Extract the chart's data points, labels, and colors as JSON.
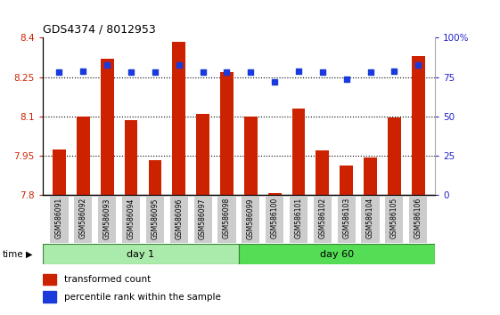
{
  "title": "GDS4374 / 8012953",
  "samples": [
    "GSM586091",
    "GSM586092",
    "GSM586093",
    "GSM586094",
    "GSM586095",
    "GSM586096",
    "GSM586097",
    "GSM586098",
    "GSM586099",
    "GSM586100",
    "GSM586101",
    "GSM586102",
    "GSM586103",
    "GSM586104",
    "GSM586105",
    "GSM586106"
  ],
  "bar_values": [
    7.975,
    8.1,
    8.32,
    8.085,
    7.935,
    8.385,
    8.11,
    8.27,
    8.1,
    7.81,
    8.13,
    7.97,
    7.915,
    7.945,
    8.095,
    8.33
  ],
  "dot_values": [
    78,
    79,
    83,
    78,
    78,
    83,
    78,
    78,
    78,
    72,
    79,
    78,
    74,
    78,
    79,
    83
  ],
  "bar_color": "#cc2200",
  "dot_color": "#1a3adb",
  "ymin": 7.8,
  "ymax": 8.4,
  "ytick_vals": [
    7.8,
    7.95,
    8.1,
    8.25,
    8.4
  ],
  "ytick_labels": [
    "7.8",
    "7.95",
    "8.1",
    "8.25",
    "8.4"
  ],
  "grid_lines": [
    7.95,
    8.1,
    8.25
  ],
  "y2min": 0,
  "y2max": 100,
  "y2tick_vals": [
    0,
    25,
    50,
    75,
    100
  ],
  "y2tick_labels": [
    "0",
    "25",
    "50",
    "75",
    "100%"
  ],
  "day1_count": 8,
  "day1_label": "day 1",
  "day60_label": "day 60",
  "legend1": "transformed count",
  "legend2": "percentile rank within the sample",
  "time_label": "time",
  "bg_day1": "#aaeaaa",
  "bg_day60": "#55dd55",
  "strip_edge": "#338833",
  "xlabel_color": "#cc2200",
  "ylabel_right_color": "#2222cc",
  "tick_bg": "#cccccc"
}
